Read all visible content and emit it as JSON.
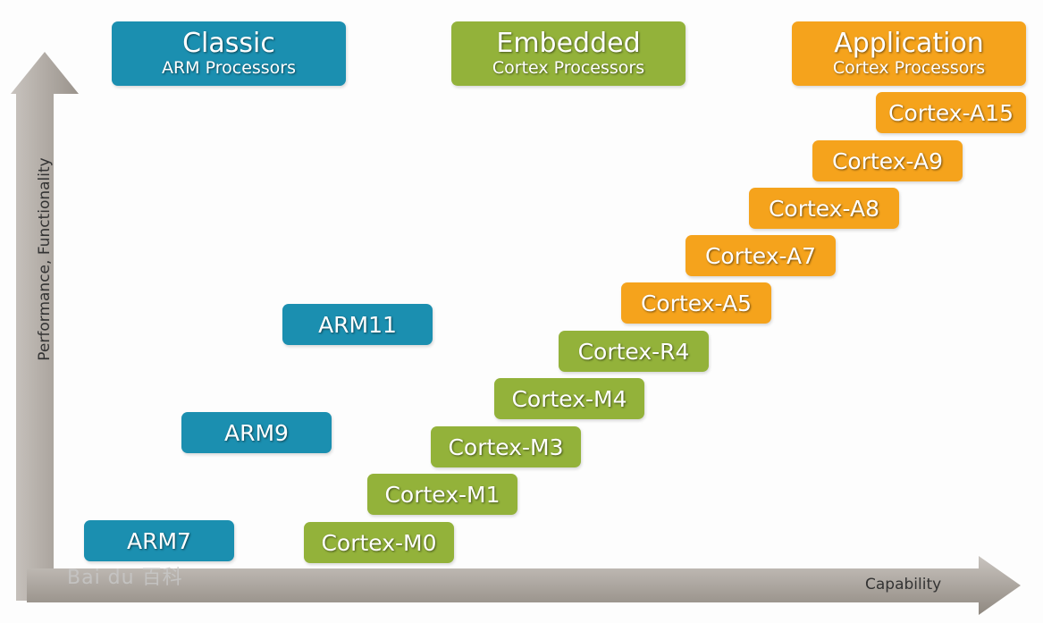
{
  "axes": {
    "y_label": "Performance, Functionality",
    "x_label": "Capability"
  },
  "colors": {
    "classic": "#1b8fb0",
    "embedded": "#93b23a",
    "application": "#f5a31c",
    "arrow": "#a09a94"
  },
  "headers": [
    {
      "title": "Classic",
      "subtitle": "ARM Processors"
    },
    {
      "title": "Embedded",
      "subtitle": "Cortex Processors"
    },
    {
      "title": "Application",
      "subtitle": "Cortex Processors"
    }
  ],
  "classic": [
    "ARM7",
    "ARM9",
    "ARM11"
  ],
  "embedded": [
    "Cortex-M0",
    "Cortex-M1",
    "Cortex-M3",
    "Cortex-M4",
    "Cortex-R4"
  ],
  "application": [
    "Cortex-A5",
    "Cortex-A7",
    "Cortex-A8",
    "Cortex-A9",
    "Cortex-A15"
  ],
  "watermark": "Bai du 百科"
}
